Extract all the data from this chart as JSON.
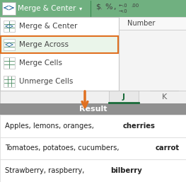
{
  "toolbar_bg": "#70b080",
  "toolbar_text": "Merge & Center",
  "dropdown_items": [
    {
      "text": "Merge & Center",
      "underline_char": "C",
      "underline_idx": 8,
      "highlighted": false
    },
    {
      "text": "Merge Across",
      "underline_char": "A",
      "underline_idx": 6,
      "highlighted": true
    },
    {
      "text": "Merge Cells",
      "underline_char": "C",
      "underline_idx": 6,
      "highlighted": false
    },
    {
      "text": "Unmerge Cells",
      "underline_char": "U",
      "underline_idx": 0,
      "highlighted": false
    }
  ],
  "highlight_bg": "#eaf5ea",
  "highlight_border": "#e07020",
  "number_label": "Number",
  "col_j_label": "J",
  "col_k_label": "K",
  "result_header_bg": "#909090",
  "result_header_text": "Result",
  "result_rows": [
    "Apples, lemons, oranges, cherries",
    "Tomatoes, potatoes, cucumbers, carrot",
    "Strawberry, raspberry, bilberry"
  ],
  "row_border": "#d8d8d8",
  "arrow_color": "#e07020",
  "fig_width": 2.63,
  "fig_height": 2.57,
  "dpi": 100
}
